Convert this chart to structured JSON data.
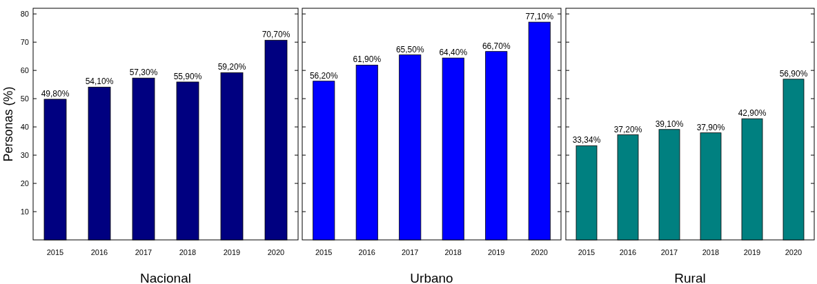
{
  "chart_data": [
    {
      "type": "bar",
      "xlabel": "Nacional",
      "ylabel": "Personas (%)",
      "categories": [
        "2015",
        "2016",
        "2017",
        "2018",
        "2019",
        "2020"
      ],
      "values": [
        49.8,
        54.1,
        57.3,
        55.9,
        59.2,
        70.7
      ],
      "value_labels": [
        "49,80%",
        "54,10%",
        "57,30%",
        "55,90%",
        "59,20%",
        "70,70%"
      ],
      "color": "#000080",
      "ylim": [
        0,
        82
      ],
      "yticks": [
        10,
        20,
        30,
        40,
        50,
        60,
        70,
        80
      ]
    },
    {
      "type": "bar",
      "xlabel": "Urbano",
      "categories": [
        "2015",
        "2016",
        "2017",
        "2018",
        "2019",
        "2020"
      ],
      "values": [
        56.2,
        61.9,
        65.5,
        64.4,
        66.7,
        77.1
      ],
      "value_labels": [
        "56,20%",
        "61,90%",
        "65,50%",
        "64,40%",
        "66,70%",
        "77,10%"
      ],
      "color": "#0000ff",
      "ylim": [
        0,
        82
      ],
      "yticks": [
        10,
        20,
        30,
        40,
        50,
        60,
        70,
        80
      ],
      "tick_labels": "x"
    },
    {
      "type": "bar",
      "xlabel": "Rural",
      "categories": [
        "2015",
        "2016",
        "2017",
        "2018",
        "2019",
        "2020"
      ],
      "values": [
        33.34,
        37.2,
        39.1,
        37.9,
        42.9,
        56.9
      ],
      "value_labels": [
        "33,34%",
        "37,20%",
        "39,10%",
        "37,90%",
        "42,90%",
        "56,90%"
      ],
      "color": "#008080",
      "ylim": [
        0,
        82
      ],
      "yticks": [
        10,
        20,
        30,
        40,
        50,
        60,
        70,
        80
      ],
      "tick_labels": "x"
    }
  ]
}
